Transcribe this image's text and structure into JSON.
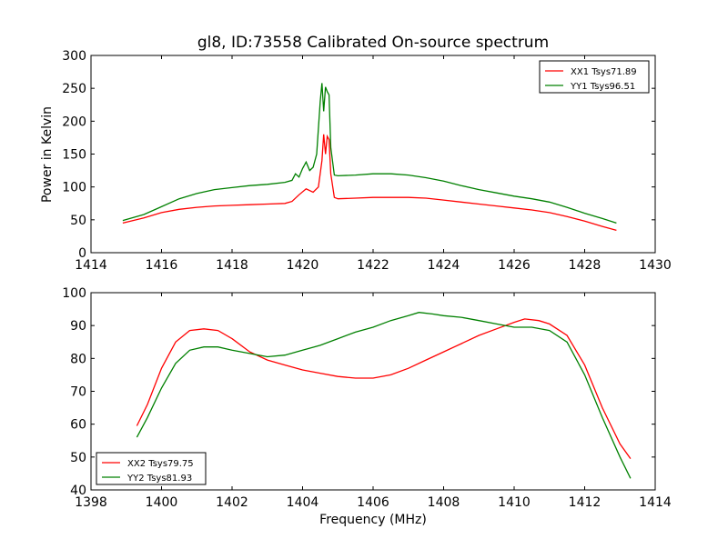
{
  "chart_data": [
    {
      "type": "line",
      "title": "gl8, ID:73558 Calibrated On-source spectrum",
      "xlabel": "",
      "ylabel": "Power in Kelvin",
      "xlim": [
        1414,
        1430
      ],
      "ylim": [
        0,
        300
      ],
      "xticks": [
        "1414",
        "1416",
        "1418",
        "1420",
        "1422",
        "1424",
        "1426",
        "1428",
        "1430"
      ],
      "yticks": [
        "0",
        "50",
        "100",
        "150",
        "200",
        "250",
        "300"
      ],
      "grid": false,
      "legend_position": "top-right",
      "series": [
        {
          "name": "XX1 Tsys71.89",
          "color": "#ff0000",
          "points": [
            [
              1414.9,
              45
            ],
            [
              1415.5,
              53
            ],
            [
              1416,
              61
            ],
            [
              1416.5,
              66
            ],
            [
              1417,
              69
            ],
            [
              1417.5,
              71
            ],
            [
              1418,
              72
            ],
            [
              1418.5,
              73
            ],
            [
              1419,
              74
            ],
            [
              1419.5,
              75
            ],
            [
              1419.7,
              78
            ],
            [
              1419.9,
              88
            ],
            [
              1420.1,
              97
            ],
            [
              1420.3,
              92
            ],
            [
              1420.45,
              100
            ],
            [
              1420.55,
              140
            ],
            [
              1420.6,
              180
            ],
            [
              1420.65,
              150
            ],
            [
              1420.7,
              177
            ],
            [
              1420.75,
              172
            ],
            [
              1420.8,
              120
            ],
            [
              1420.9,
              84
            ],
            [
              1421,
              82
            ],
            [
              1421.5,
              83
            ],
            [
              1422,
              84
            ],
            [
              1422.5,
              84
            ],
            [
              1423,
              84
            ],
            [
              1423.5,
              83
            ],
            [
              1424,
              80
            ],
            [
              1424.5,
              77
            ],
            [
              1425,
              74
            ],
            [
              1425.5,
              71
            ],
            [
              1426,
              68
            ],
            [
              1426.5,
              65
            ],
            [
              1427,
              61
            ],
            [
              1427.5,
              55
            ],
            [
              1428,
              48
            ],
            [
              1428.5,
              40
            ],
            [
              1428.9,
              34
            ]
          ]
        },
        {
          "name": "YY1 Tsys96.51",
          "color": "#008000",
          "points": [
            [
              1414.9,
              49
            ],
            [
              1415.5,
              58
            ],
            [
              1416,
              70
            ],
            [
              1416.5,
              82
            ],
            [
              1417,
              90
            ],
            [
              1417.5,
              96
            ],
            [
              1418,
              99
            ],
            [
              1418.5,
              102
            ],
            [
              1419,
              104
            ],
            [
              1419.5,
              107
            ],
            [
              1419.7,
              110
            ],
            [
              1419.8,
              120
            ],
            [
              1419.9,
              115
            ],
            [
              1420,
              128
            ],
            [
              1420.1,
              138
            ],
            [
              1420.2,
              125
            ],
            [
              1420.3,
              130
            ],
            [
              1420.4,
              150
            ],
            [
              1420.5,
              230
            ],
            [
              1420.55,
              258
            ],
            [
              1420.6,
              215
            ],
            [
              1420.65,
              252
            ],
            [
              1420.7,
              245
            ],
            [
              1420.75,
              240
            ],
            [
              1420.8,
              160
            ],
            [
              1420.9,
              118
            ],
            [
              1421,
              117
            ],
            [
              1421.5,
              118
            ],
            [
              1422,
              120
            ],
            [
              1422.5,
              120
            ],
            [
              1423,
              118
            ],
            [
              1423.5,
              114
            ],
            [
              1424,
              109
            ],
            [
              1424.5,
              102
            ],
            [
              1425,
              96
            ],
            [
              1425.5,
              91
            ],
            [
              1426,
              86
            ],
            [
              1426.5,
              82
            ],
            [
              1427,
              77
            ],
            [
              1427.5,
              69
            ],
            [
              1428,
              60
            ],
            [
              1428.5,
              52
            ],
            [
              1428.9,
              45
            ]
          ]
        }
      ]
    },
    {
      "type": "line",
      "title": "",
      "xlabel": "Frequency (MHz)",
      "ylabel": "",
      "xlim": [
        1398,
        1414
      ],
      "ylim": [
        40,
        100
      ],
      "xticks": [
        "1398",
        "1400",
        "1402",
        "1404",
        "1406",
        "1408",
        "1410",
        "1412",
        "1414"
      ],
      "yticks": [
        "40",
        "50",
        "60",
        "70",
        "80",
        "90",
        "100"
      ],
      "grid": false,
      "legend_position": "bottom-left",
      "series": [
        {
          "name": "XX2 Tsys79.75",
          "color": "#ff0000",
          "points": [
            [
              1399.3,
              59.5
            ],
            [
              1399.6,
              66
            ],
            [
              1400,
              77
            ],
            [
              1400.4,
              85
            ],
            [
              1400.8,
              88.5
            ],
            [
              1401.2,
              89
            ],
            [
              1401.6,
              88.5
            ],
            [
              1402,
              86
            ],
            [
              1402.5,
              82
            ],
            [
              1403,
              79.5
            ],
            [
              1403.5,
              78
            ],
            [
              1404,
              76.5
            ],
            [
              1404.5,
              75.5
            ],
            [
              1405,
              74.5
            ],
            [
              1405.5,
              74
            ],
            [
              1406,
              74
            ],
            [
              1406.5,
              75
            ],
            [
              1407,
              77
            ],
            [
              1407.5,
              79.5
            ],
            [
              1408,
              82
            ],
            [
              1408.5,
              84.5
            ],
            [
              1409,
              87
            ],
            [
              1409.5,
              89
            ],
            [
              1410,
              91
            ],
            [
              1410.3,
              92
            ],
            [
              1410.7,
              91.5
            ],
            [
              1411,
              90.5
            ],
            [
              1411.5,
              87
            ],
            [
              1412,
              78
            ],
            [
              1412.5,
              65
            ],
            [
              1413,
              54
            ],
            [
              1413.3,
              49.5
            ]
          ]
        },
        {
          "name": "YY2 Tsys81.93",
          "color": "#008000",
          "points": [
            [
              1399.3,
              56
            ],
            [
              1399.6,
              62
            ],
            [
              1400,
              71
            ],
            [
              1400.4,
              78.5
            ],
            [
              1400.8,
              82.5
            ],
            [
              1401.2,
              83.5
            ],
            [
              1401.6,
              83.5
            ],
            [
              1402,
              82.5
            ],
            [
              1402.5,
              81.5
            ],
            [
              1403,
              80.5
            ],
            [
              1403.5,
              81
            ],
            [
              1404,
              82.5
            ],
            [
              1404.5,
              84
            ],
            [
              1405,
              86
            ],
            [
              1405.5,
              88
            ],
            [
              1406,
              89.5
            ],
            [
              1406.5,
              91.5
            ],
            [
              1407,
              93
            ],
            [
              1407.3,
              94
            ],
            [
              1407.7,
              93.5
            ],
            [
              1408,
              93
            ],
            [
              1408.5,
              92.5
            ],
            [
              1409,
              91.5
            ],
            [
              1409.5,
              90.5
            ],
            [
              1410,
              89.5
            ],
            [
              1410.5,
              89.5
            ],
            [
              1411,
              88.5
            ],
            [
              1411.5,
              85
            ],
            [
              1412,
              75
            ],
            [
              1412.5,
              62
            ],
            [
              1413,
              50
            ],
            [
              1413.3,
              43.5
            ]
          ]
        }
      ]
    }
  ]
}
